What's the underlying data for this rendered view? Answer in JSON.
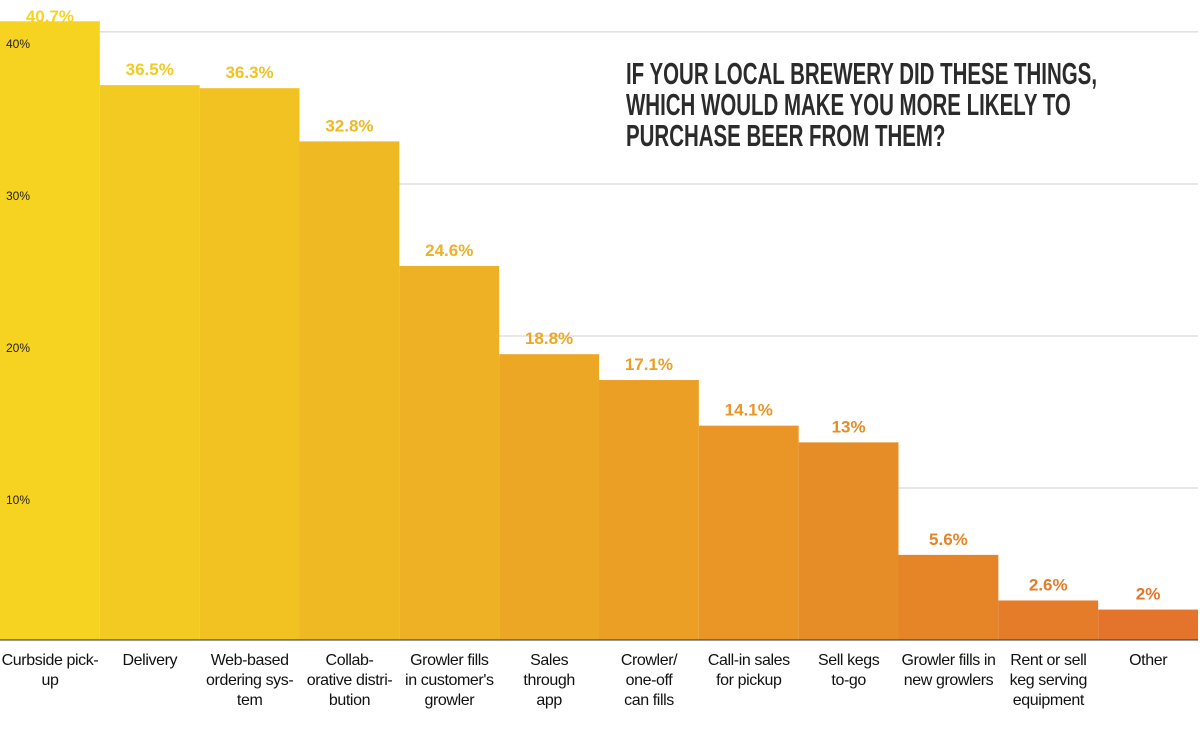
{
  "chart_data": {
    "type": "bar",
    "title": "IF YOUR LOCAL BREWERY DID THESE THINGS,\nWHICH WOULD MAKE YOU MORE LIKELY TO\nPURCHASE BEER FROM THEM?",
    "categories": [
      "Curbside pick-\nup",
      "Delivery",
      "Web-based\nordering sys-\ntem",
      "Collab-\norative distri-\nbution",
      "Growler fills\nin customer's\ngrowler",
      "Sales\nthrough\napp",
      "Crowler/\none-off\ncan fills",
      "Call-in sales\nfor pickup",
      "Sell kegs\nto-go",
      "Growler fills in\nnew growlers",
      "Rent or sell\nkeg serving\nequipment",
      "Other"
    ],
    "values": [
      40.7,
      36.5,
      36.3,
      32.8,
      24.6,
      18.8,
      17.1,
      14.1,
      13,
      5.6,
      2.6,
      2
    ],
    "value_labels": [
      "40.7%",
      "36.5%",
      "36.3%",
      "32.8%",
      "24.6%",
      "18.8%",
      "17.1%",
      "14.1%",
      "13%",
      "5.6%",
      "2.6%",
      "2%"
    ],
    "colors": [
      "#f6d320",
      "#f3ca21",
      "#f1c222",
      "#efb923",
      "#eeb024",
      "#eca824",
      "#eb9f25",
      "#e99626",
      "#e78d27",
      "#e68528",
      "#e57c29",
      "#e4742b"
    ],
    "ylim": [
      0,
      42.1
    ],
    "yticks": [
      {
        "value": 10,
        "label": "10%"
      },
      {
        "value": 20,
        "label": "20%"
      },
      {
        "value": 30,
        "label": "30%"
      },
      {
        "value": 40,
        "label": "40%"
      }
    ],
    "grid": true
  }
}
